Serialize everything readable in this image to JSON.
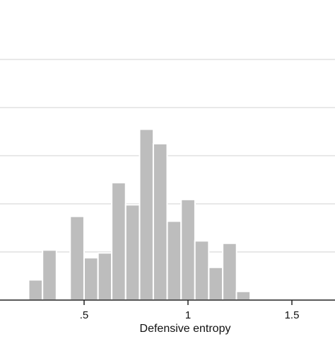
{
  "chart_data": {
    "type": "bar",
    "subtype": "histogram",
    "xlabel": "Defensive entropy",
    "ylabel": "",
    "title": "",
    "x_ticks": [
      0.5,
      1,
      1.5
    ],
    "x_tick_labels": [
      ".5",
      "1",
      "1.5"
    ],
    "xlim": [
      0.1,
      1.71
    ],
    "ylim": [
      0,
      0.7
    ],
    "grid": "horizontal",
    "bin_width": 0.0667,
    "bins": [
      {
        "start": 0.233,
        "value": 0.042
      },
      {
        "start": 0.3,
        "value": 0.104
      },
      {
        "start": 0.367,
        "value": 0.0
      },
      {
        "start": 0.433,
        "value": 0.174
      },
      {
        "start": 0.5,
        "value": 0.088
      },
      {
        "start": 0.567,
        "value": 0.098
      },
      {
        "start": 0.633,
        "value": 0.244
      },
      {
        "start": 0.7,
        "value": 0.198
      },
      {
        "start": 0.767,
        "value": 0.355
      },
      {
        "start": 0.833,
        "value": 0.325
      },
      {
        "start": 0.9,
        "value": 0.164
      },
      {
        "start": 0.967,
        "value": 0.209
      },
      {
        "start": 1.033,
        "value": 0.123
      },
      {
        "start": 1.1,
        "value": 0.068
      },
      {
        "start": 1.167,
        "value": 0.118
      },
      {
        "start": 1.233,
        "value": 0.018
      },
      {
        "start": 1.3,
        "value": 0.0
      },
      {
        "start": 1.367,
        "value": 0.002
      },
      {
        "start": 1.433,
        "value": 0.002
      }
    ],
    "colors": {
      "bar": "#bdbdbd",
      "bar_edge": "#ffffff",
      "grid": "#d9d9d9",
      "axis": "#222222"
    }
  }
}
